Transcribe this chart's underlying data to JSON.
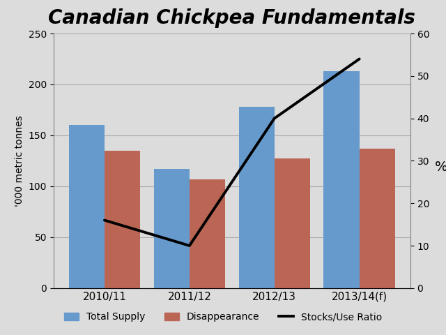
{
  "title": "Canadian Chickpea Fundamentals",
  "categories": [
    "2010/11",
    "2011/12",
    "2012/13",
    "2013/14(f)"
  ],
  "total_supply": [
    160,
    117,
    178,
    213
  ],
  "disappearance": [
    135,
    107,
    127,
    137
  ],
  "stocks_use_ratio": [
    16,
    10,
    40,
    54
  ],
  "bar_color_supply": "#6699CC",
  "bar_color_disappearance": "#BB6655",
  "line_color": "#000000",
  "ylabel_left": "'000 metric tonnes",
  "ylabel_right": "%",
  "ylim_left": [
    0,
    250
  ],
  "ylim_right": [
    0,
    60
  ],
  "yticks_left": [
    0,
    50,
    100,
    150,
    200,
    250
  ],
  "yticks_right": [
    0,
    10,
    20,
    30,
    40,
    50,
    60
  ],
  "background_color": "#DCDCDC",
  "plot_bg_color": "#DCDCDC",
  "title_fontsize": 20,
  "title_fontstyle": "italic",
  "title_fontweight": "bold",
  "bar_width": 0.42,
  "line_width": 2.8,
  "legend_labels": [
    "Total Supply",
    "Disappearance",
    "Stocks/Use Ratio"
  ],
  "grid_color": "#AAAAAA",
  "ylabel_fontsize": 10,
  "tick_fontsize": 10,
  "xlabel_fontsize": 11
}
